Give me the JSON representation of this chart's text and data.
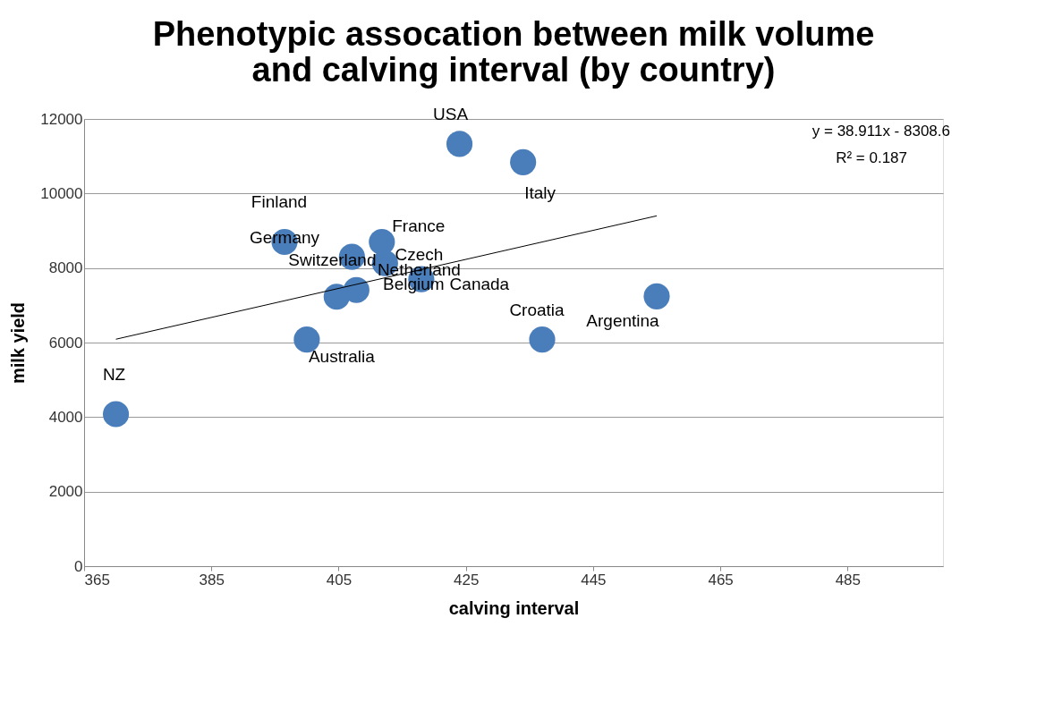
{
  "chart_data": {
    "type": "scatter",
    "title": "Phenotypic assocation between milk volume\nand calving interval (by country)",
    "xlabel": "calving interval",
    "ylabel": "milk yield",
    "series": [
      {
        "type": "scatter",
        "marker": "circle",
        "color": "#4a7ebb",
        "x": [
          424,
          434,
          396.5,
          411.8,
          407.1,
          412.3,
          407.8,
          404.7,
          418,
          437,
          455,
          400,
          370
        ],
        "values": [
          11330,
          10840,
          8700,
          8700,
          8300,
          8130,
          7410,
          7230,
          7700,
          6080,
          7240,
          6080,
          4080
        ]
      },
      {
        "type": "line",
        "color": "#000000",
        "x": [
          370,
          455
        ],
        "values": [
          6090,
          9400
        ]
      }
    ],
    "annotations": [
      {
        "text": "USA",
        "x": 424,
        "y": 11330
      },
      {
        "text": "Italy",
        "x": 434,
        "y": 10840
      },
      {
        "text": "Finland",
        "x": 396.5,
        "y": 8650
      },
      {
        "text": "Germany",
        "x": 396.5,
        "y": 8700
      },
      {
        "text": "France",
        "x": 411.8,
        "y": 8700
      },
      {
        "text": "Switzerland",
        "x": 407.1,
        "y": 8300
      },
      {
        "text": "Czech",
        "x": 412.3,
        "y": 8130
      },
      {
        "text": "Netherland",
        "x": 407.8,
        "y": 7410
      },
      {
        "text": "Belgium",
        "x": 404.7,
        "y": 7230
      },
      {
        "text": "Canada",
        "x": 418,
        "y": 7700
      },
      {
        "text": "Croatia",
        "x": 437,
        "y": 6080
      },
      {
        "text": "Argentina",
        "x": 455,
        "y": 7240
      },
      {
        "text": "Australia",
        "x": 400,
        "y": 6080
      },
      {
        "text": "NZ",
        "x": 370,
        "y": 4080
      },
      "y = 38.911x - 8308.6",
      "R² = 0.187"
    ],
    "xlim": [
      365,
      500
    ],
    "xticks": [
      365,
      385,
      405,
      425,
      445,
      465,
      485
    ],
    "ylim": [
      0,
      12000
    ],
    "yticks": [
      0,
      2000,
      4000,
      6000,
      8000,
      10000,
      12000
    ],
    "grid": "y",
    "legend": false
  }
}
